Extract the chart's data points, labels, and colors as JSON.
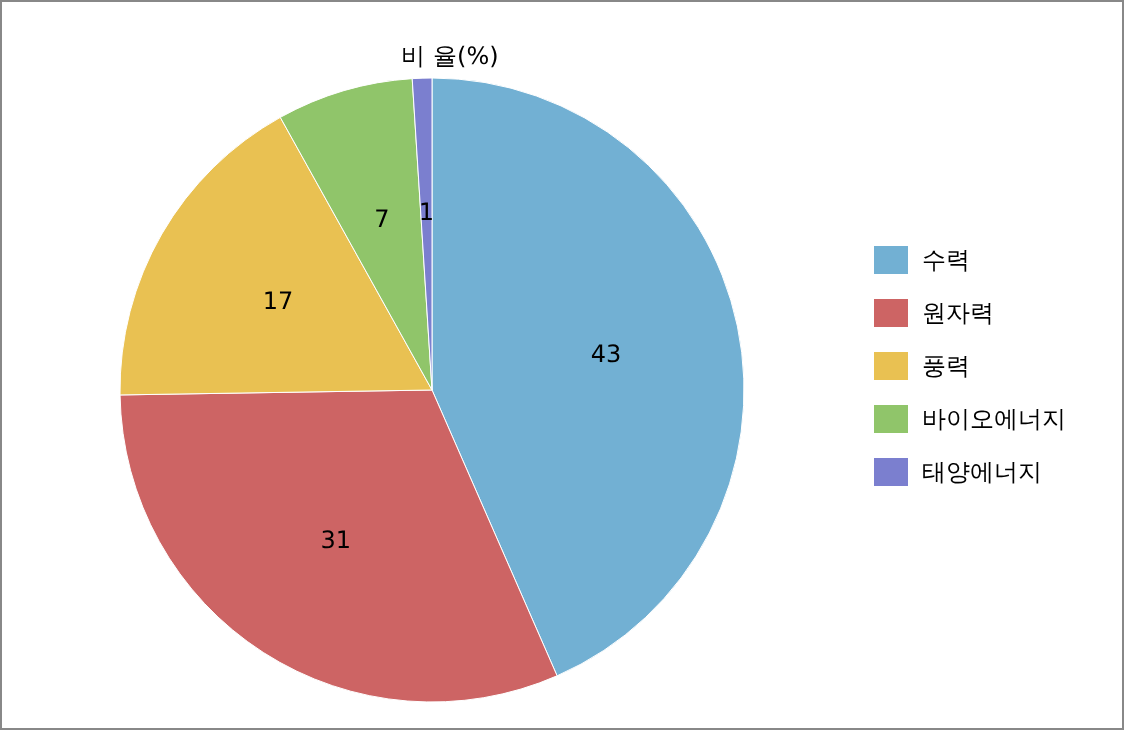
{
  "chart_data": {
    "type": "pie",
    "title": "비 율(%)",
    "categories": [
      "수력",
      "원자력",
      "풍력",
      "바이오에너지",
      "태양에너지"
    ],
    "values": [
      43,
      31,
      17,
      7,
      1
    ],
    "colors": [
      "#72b0d3",
      "#cd6464",
      "#e9c152",
      "#90c56a",
      "#7b7fcf"
    ],
    "data_labels": true,
    "legend": "right"
  }
}
